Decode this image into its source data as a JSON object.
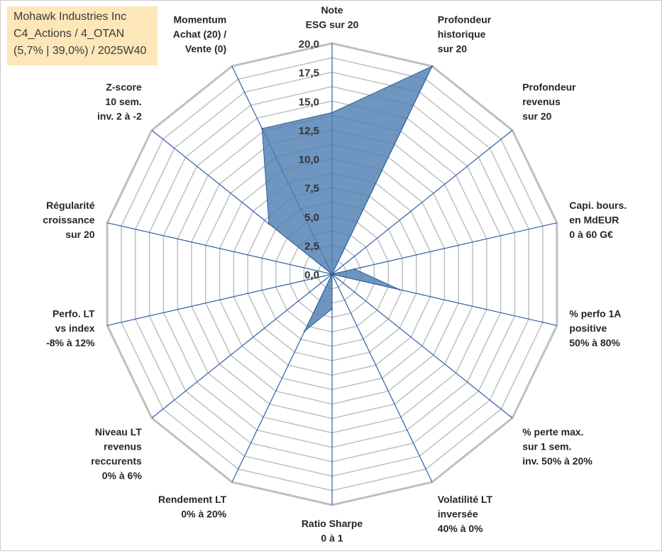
{
  "title": {
    "company": "Mohawk Industries Inc",
    "portfolio": "C4_Actions / 4_OTAN",
    "stats": "(5,7% | 39,0%) / 2025W40"
  },
  "colors": {
    "fill": "#4f7fb3",
    "stroke": "#2f5f97",
    "spoke": "#2e5fa8",
    "grid": "#bfbfbf",
    "title_bg": "#fde7b8"
  },
  "chart_data": {
    "type": "radar",
    "title": "Mohawk Industries Inc",
    "rlim": [
      0,
      20
    ],
    "ticks": [
      0,
      2.5,
      5,
      7.5,
      10,
      12.5,
      15,
      17.5,
      20
    ],
    "tick_labels": [
      "0,0",
      "2,5",
      "5,0",
      "7,5",
      "10,0",
      "12,5",
      "15,0",
      "17,5",
      "20,0"
    ],
    "grid": true,
    "categories": [
      [
        "Note",
        "ESG sur 20"
      ],
      [
        "Profondeur",
        "historique",
        "sur 20"
      ],
      [
        "Profondeur",
        "revenus",
        "sur 20"
      ],
      [
        "Capi. bours.",
        "en MdEUR",
        "0 à 60 G€"
      ],
      [
        "% perfo 1A",
        "positive",
        "50% à 80%"
      ],
      [
        "% perte max.",
        "sur 1 sem.",
        "inv. 50% à 20%"
      ],
      [
        "Volatilité LT",
        "inversée",
        "40% à 0%"
      ],
      [
        "Ratio Sharpe",
        "0 à 1"
      ],
      [
        "Rendement LT",
        "0% à 20%"
      ],
      [
        "Niveau LT",
        "revenus",
        "reccurents",
        "0% à 6%"
      ],
      [
        "Perfo. LT",
        "vs index",
        "-8% à 12%"
      ],
      [
        "Régularité",
        "croissance",
        "sur 20"
      ],
      [
        "Z-score",
        "10 sem.",
        "inv. 2 à -2"
      ],
      [
        "Momentum",
        "Achat (20) /",
        "Vente (0)"
      ]
    ],
    "series": [
      {
        "name": "Mohawk Industries Inc",
        "values": [
          14,
          20,
          0,
          2,
          6,
          0,
          0,
          3,
          5.5,
          0,
          0,
          0,
          7,
          14
        ]
      }
    ]
  }
}
